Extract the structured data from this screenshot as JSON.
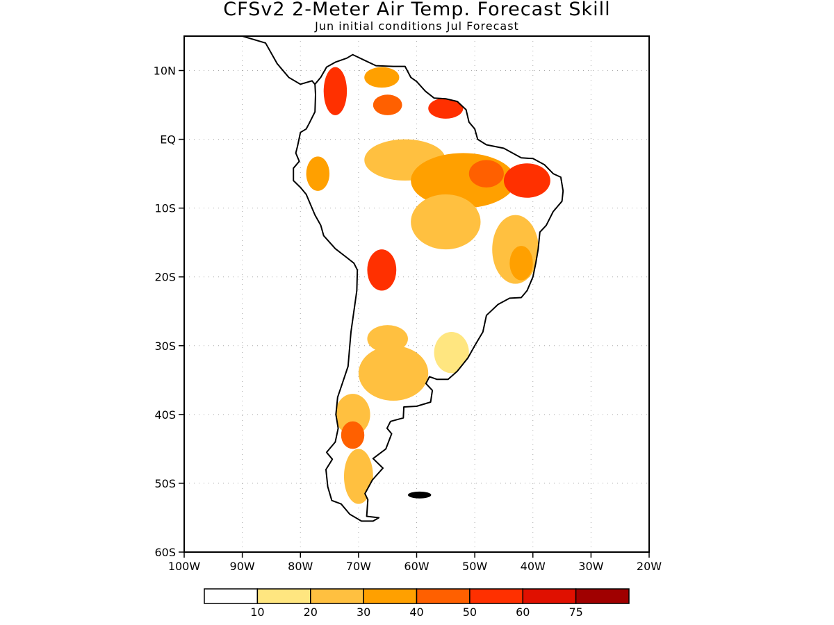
{
  "title": "CFSv2 2-Meter Air Temp. Forecast Skill",
  "subtitle": "Jun initial conditions  Jul Forecast",
  "map": {
    "region": "South America",
    "lon_range": [
      -100,
      -20
    ],
    "lat_range": [
      -60,
      15
    ],
    "grid": "dotted",
    "lat_ticks": [
      {
        "value": 10,
        "label": "10N"
      },
      {
        "value": 0,
        "label": "EQ"
      },
      {
        "value": -10,
        "label": "10S"
      },
      {
        "value": -20,
        "label": "20S"
      },
      {
        "value": -30,
        "label": "30S"
      },
      {
        "value": -40,
        "label": "40S"
      },
      {
        "value": -50,
        "label": "50S"
      },
      {
        "value": -60,
        "label": "60S"
      }
    ],
    "lon_ticks": [
      {
        "value": -100,
        "label": "100W"
      },
      {
        "value": -90,
        "label": "90W"
      },
      {
        "value": -80,
        "label": "80W"
      },
      {
        "value": -70,
        "label": "70W"
      },
      {
        "value": -60,
        "label": "60W"
      },
      {
        "value": -50,
        "label": "50W"
      },
      {
        "value": -40,
        "label": "40W"
      },
      {
        "value": -30,
        "label": "30W"
      },
      {
        "value": -20,
        "label": "20W"
      }
    ]
  },
  "colorbar": {
    "colors": [
      "#ffffff",
      "#ffe680",
      "#ffc040",
      "#ffa000",
      "#ff6000",
      "#ff3000",
      "#e01000",
      "#a00000"
    ],
    "labels": [
      "10",
      "20",
      "30",
      "40",
      "50",
      "60",
      "75"
    ]
  },
  "skill_regions": [
    {
      "lon": -74,
      "lat": 7,
      "rx": 2,
      "ry": 3.5,
      "level": 5
    },
    {
      "lon": -66,
      "lat": 9,
      "rx": 3,
      "ry": 1.5,
      "level": 3
    },
    {
      "lon": -65,
      "lat": 5,
      "rx": 2.5,
      "ry": 1.5,
      "level": 4
    },
    {
      "lon": -55,
      "lat": 4.5,
      "rx": 3,
      "ry": 1.5,
      "level": 5
    },
    {
      "lon": -77,
      "lat": -5,
      "rx": 2,
      "ry": 2.5,
      "level": 3
    },
    {
      "lon": -62,
      "lat": -3,
      "rx": 7,
      "ry": 3,
      "level": 2
    },
    {
      "lon": -52,
      "lat": -6,
      "rx": 9,
      "ry": 4,
      "level": 3
    },
    {
      "lon": -48,
      "lat": -5,
      "rx": 3,
      "ry": 2,
      "level": 4
    },
    {
      "lon": -41,
      "lat": -6,
      "rx": 4,
      "ry": 2.5,
      "level": 5
    },
    {
      "lon": -55,
      "lat": -12,
      "rx": 6,
      "ry": 4,
      "level": 2
    },
    {
      "lon": -43,
      "lat": -16,
      "rx": 4,
      "ry": 5,
      "level": 2
    },
    {
      "lon": -42,
      "lat": -18,
      "rx": 2,
      "ry": 2.5,
      "level": 3
    },
    {
      "lon": -66,
      "lat": -19,
      "rx": 2.5,
      "ry": 3,
      "level": 5
    },
    {
      "lon": -65,
      "lat": -29,
      "rx": 3.5,
      "ry": 2,
      "level": 2
    },
    {
      "lon": -64,
      "lat": -34,
      "rx": 6,
      "ry": 4,
      "level": 2
    },
    {
      "lon": -54,
      "lat": -31,
      "rx": 3,
      "ry": 3,
      "level": 1
    },
    {
      "lon": -71,
      "lat": -40,
      "rx": 3,
      "ry": 3,
      "level": 2
    },
    {
      "lon": -71,
      "lat": -43,
      "rx": 2,
      "ry": 2,
      "level": 4
    },
    {
      "lon": -70,
      "lat": -49,
      "rx": 2.5,
      "ry": 4,
      "level": 2
    }
  ]
}
